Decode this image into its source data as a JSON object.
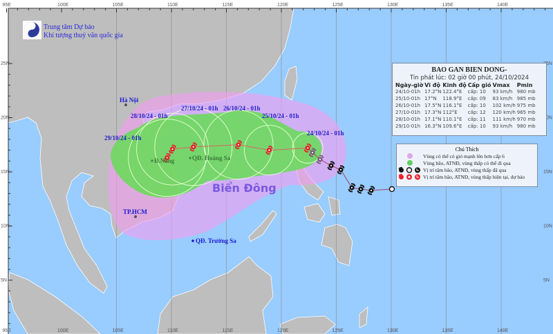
{
  "header": {
    "org_line1": "Trung tâm Dự báo",
    "org_line2": "Khí tượng thuỷ văn quốc gia"
  },
  "axes": {
    "lon_labels": [
      "95E",
      "100E",
      "105E",
      "110E",
      "115E",
      "120E",
      "125E",
      "130E",
      "135E",
      "140E"
    ],
    "lon_values": [
      95,
      100,
      105,
      110,
      115,
      120,
      125,
      130,
      135,
      140
    ],
    "lat_labels": [
      "25N",
      "20N",
      "15N",
      "10N",
      "5N"
    ],
    "lat_values": [
      25,
      20,
      15,
      10,
      5
    ]
  },
  "places": {
    "hanoi": "Hà Nội",
    "danang": "Đ.Nẵng",
    "hoangsa": "QĐ. Hoàng Sa",
    "hcm": "TP.HCM",
    "truongsa": "QĐ. Trường Sa",
    "sea": "Biển Đông"
  },
  "forecast_labels": [
    "24/10/24 - 01h",
    "25/10/24 - 01h",
    "26/10/24 - 01h",
    "27/10/24 - 01h",
    "28/10/24 - 01h",
    "29/10/24 - 01h"
  ],
  "info": {
    "title": "BAO GAN BIEN DONG-",
    "issued": "Tin phát lúc: 02 giờ 00 phút, 24/10/2024",
    "columns": [
      "Ngày-giờ",
      "Vĩ độ",
      "Kinh độ",
      "Cấp gió",
      "Vmax",
      "Pmin"
    ],
    "rows": [
      {
        "time": "24/10-01h",
        "lat": "17.2°N",
        "lon": "122.4°E",
        "level": "cấp: 10",
        "vmax": "93 km/h",
        "pmin": "980 mb",
        "lat_v": 17.2,
        "lon_v": 122.4
      },
      {
        "time": "25/10-01h",
        "lat": "17°N",
        "lon": "118.9°E",
        "level": "cấp: 09",
        "vmax": "83 km/h",
        "pmin": "985 mb",
        "lat_v": 17.0,
        "lon_v": 118.9
      },
      {
        "time": "26/10-01h",
        "lat": "17.5°N",
        "lon": "116.1°E",
        "level": "cấp: 10",
        "vmax": "102 km/h",
        "pmin": "975 mb",
        "lat_v": 17.5,
        "lon_v": 116.1
      },
      {
        "time": "27/10-01h",
        "lat": "17.3°N",
        "lon": "112°E",
        "level": "cấp: 12",
        "vmax": "120 km/h",
        "pmin": "965 mb",
        "lat_v": 17.3,
        "lon_v": 112.0
      },
      {
        "time": "28/10-01h",
        "lat": "17.1°N",
        "lon": "110.1°E",
        "level": "cấp: 11",
        "vmax": "111 km/h",
        "pmin": "970 mb",
        "lat_v": 17.1,
        "lon_v": 110.1
      },
      {
        "time": "29/10-01h",
        "lat": "16.3°N",
        "lon": "109.6°E",
        "level": "cấp: 10",
        "vmax": "93 km/h",
        "pmin": "980 mb",
        "lat_v": 16.3,
        "lon_v": 109.6
      }
    ]
  },
  "legend": {
    "title": "Chú Thích",
    "items": [
      "Vùng có thể có gió mạnh lên hơn cấp 6",
      "Vùng bão, ATNĐ, vùng thấp có thể đi qua",
      "Vị trí tâm bão, ATNĐ, vùng thấp đã qua",
      "Vị trí tâm bão, ATNĐ, vùng thấp hiện tại, dự báo"
    ]
  },
  "colors": {
    "sea": "#99ccff",
    "land": "#bebebe",
    "strong_wind_zone": "#f0a0f0",
    "danger_zone": "#66dd55",
    "forecast_storm": "#e8202a",
    "past_storm": "#111111",
    "track_line": "#e06060"
  }
}
